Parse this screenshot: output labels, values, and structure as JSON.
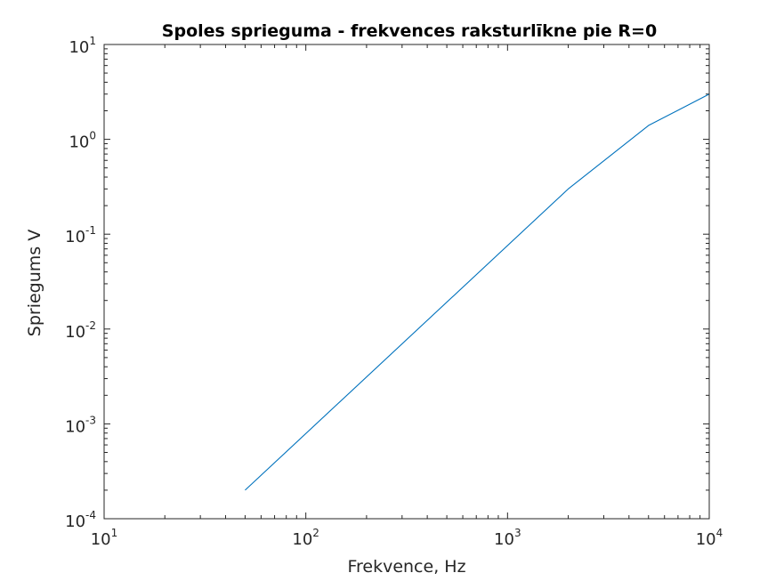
{
  "chart_data": {
    "type": "line",
    "title": "Spoles sprieguma - frekvences raksturlīkne pie R=0",
    "xlabel": "Frekvence, Hz",
    "ylabel": "Spriegums V",
    "x_scale": "log",
    "y_scale": "log",
    "xlim": [
      10,
      10000
    ],
    "ylim": [
      0.0001,
      10
    ],
    "x_ticks": [
      {
        "base": "10",
        "exp": "1"
      },
      {
        "base": "10",
        "exp": "2"
      },
      {
        "base": "10",
        "exp": "3"
      },
      {
        "base": "10",
        "exp": "4"
      }
    ],
    "y_ticks": [
      {
        "base": "10",
        "exp": "-4"
      },
      {
        "base": "10",
        "exp": "-3"
      },
      {
        "base": "10",
        "exp": "-2"
      },
      {
        "base": "10",
        "exp": "-1"
      },
      {
        "base": "10",
        "exp": "0"
      },
      {
        "base": "10",
        "exp": "1"
      }
    ],
    "grid": false,
    "box": true,
    "series": [
      {
        "color": "#0072bd",
        "x": [
          50,
          2000,
          5000,
          10000
        ],
        "y": [
          0.0002,
          0.3,
          1.4,
          3.0
        ]
      }
    ]
  }
}
